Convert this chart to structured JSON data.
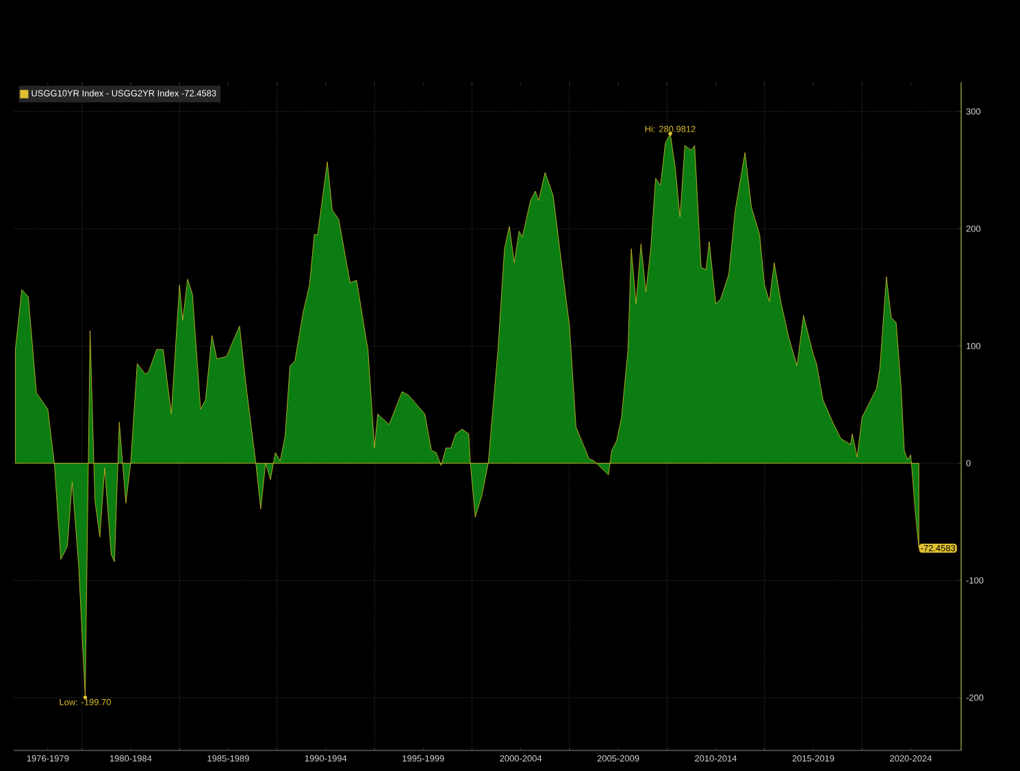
{
  "chart_data": {
    "type": "area",
    "x": [
      "1976-08",
      "1976-12",
      "1977-04",
      "1977-09",
      "1978-04",
      "1978-08",
      "1978-12",
      "1979-04",
      "1979-07",
      "1979-11",
      "1980-03",
      "1980-06",
      "1980-09",
      "1980-12",
      "1981-03",
      "1981-07",
      "1981-09",
      "1981-12",
      "1982-04",
      "1982-07",
      "1982-11",
      "1983-04",
      "1983-06",
      "1983-11",
      "1984-03",
      "1984-08",
      "1985-01",
      "1985-03",
      "1985-06",
      "1985-09",
      "1986-02",
      "1986-05",
      "1986-09",
      "1986-12",
      "1987-06",
      "1987-09",
      "1988-02",
      "1988-06",
      "1988-12",
      "1989-03",
      "1989-06",
      "1989-09",
      "1989-12",
      "1990-03",
      "1990-06",
      "1990-09",
      "1990-12",
      "1991-05",
      "1991-09",
      "1991-12",
      "1992-02",
      "1992-05",
      "1992-08",
      "1992-11",
      "1993-03",
      "1993-10",
      "1994-02",
      "1994-08",
      "1994-09",
      "1995-01",
      "1995-03",
      "1995-10",
      "1996-06",
      "1996-10",
      "1997-08",
      "1997-12",
      "1998-03",
      "1998-06",
      "1998-09",
      "1998-12",
      "1999-03",
      "1999-07",
      "1999-11",
      "1999-12",
      "2000-03",
      "2000-07",
      "2000-11",
      "2001-05",
      "2001-09",
      "2001-12",
      "2002-03",
      "2002-06",
      "2002-08",
      "2003-01",
      "2003-04",
      "2003-06",
      "2003-10",
      "2004-03",
      "2004-07",
      "2005-01",
      "2005-05",
      "2006-01",
      "2006-04",
      "2007-01",
      "2007-03",
      "2007-06",
      "2007-09",
      "2008-01",
      "2008-03",
      "2008-06",
      "2008-09",
      "2008-12",
      "2009-03",
      "2009-06",
      "2009-09",
      "2009-12",
      "2010-03",
      "2010-06",
      "2010-09",
      "2010-12",
      "2011-04",
      "2011-06",
      "2011-10",
      "2012-01",
      "2012-03",
      "2012-07",
      "2012-10",
      "2013-03",
      "2013-07",
      "2014-01",
      "2014-05",
      "2014-10",
      "2015-01",
      "2015-04",
      "2015-07",
      "2015-11",
      "2016-04",
      "2016-09",
      "2017-01",
      "2017-07",
      "2017-09",
      "2018-01",
      "2018-07",
      "2018-12",
      "2019-06",
      "2019-07",
      "2019-10",
      "2020-01",
      "2020-10",
      "2020-12",
      "2021-04",
      "2021-07",
      "2021-10",
      "2022-01",
      "2022-03",
      "2022-05",
      "2022-07",
      "2022-10",
      "2022-12"
    ],
    "series": [
      {
        "name": "USGG10YR Index - USGG2YR Index -72.4583",
        "color": "#0b7d12",
        "values": [
          97,
          148,
          142,
          60,
          46,
          0,
          -82,
          -71,
          -16,
          -88,
          -199.7,
          113,
          -32,
          -63,
          -4,
          -78,
          -84,
          35,
          -34,
          0,
          85,
          76,
          78,
          97,
          97,
          42,
          152,
          122,
          157,
          144,
          46,
          54,
          109,
          89,
          91,
          101,
          117,
          66,
          0,
          -39,
          0,
          -14,
          9,
          2,
          23,
          83,
          87,
          128,
          152,
          195,
          195,
          226,
          257,
          216,
          208,
          154,
          156,
          105,
          97,
          13,
          42,
          33,
          61,
          58,
          42,
          11,
          9,
          -2,
          13,
          13,
          25,
          29,
          25,
          0,
          -46,
          -28,
          0,
          97,
          183,
          202,
          171,
          198,
          193,
          224,
          232,
          224,
          248,
          228,
          183,
          117,
          31,
          4,
          2,
          -10,
          11,
          19,
          39,
          97,
          183,
          136,
          187,
          146,
          183,
          243,
          237,
          273,
          280.9812,
          253,
          210,
          271,
          267,
          271,
          167,
          165,
          189,
          136,
          140,
          161,
          216,
          265,
          218,
          195,
          152,
          138,
          171,
          138,
          107,
          83,
          126,
          93,
          85,
          54,
          35,
          21,
          16,
          25,
          5,
          39,
          64,
          81,
          159,
          124,
          120,
          66,
          11,
          3,
          7,
          -45,
          -72.4583
        ]
      }
    ],
    "xlim": [
      "1976-07",
      "2025-02"
    ],
    "xticks": [
      {
        "value": "1978-04",
        "label": "1976-1979"
      },
      {
        "value": "1982-07",
        "label": "1980-1984"
      },
      {
        "value": "1987-07",
        "label": "1985-1989"
      },
      {
        "value": "1992-07",
        "label": "1990-1994"
      },
      {
        "value": "1997-07",
        "label": "1995-1999"
      },
      {
        "value": "2002-07",
        "label": "2000-2004"
      },
      {
        "value": "2007-07",
        "label": "2005-2009"
      },
      {
        "value": "2012-07",
        "label": "2010-2014"
      },
      {
        "value": "2017-07",
        "label": "2015-2019"
      },
      {
        "value": "2022-07",
        "label": "2020-2024"
      },
      {
        "value": "1980-01",
        "label": null
      },
      {
        "value": "1985-01",
        "label": null
      },
      {
        "value": "1990-01",
        "label": null
      },
      {
        "value": "1995-01",
        "label": null
      },
      {
        "value": "2000-01",
        "label": null
      },
      {
        "value": "2005-01",
        "label": null
      },
      {
        "value": "2010-01",
        "label": null
      },
      {
        "value": "2015-01",
        "label": null
      },
      {
        "value": "2020-01",
        "label": null
      }
    ],
    "ylim": [
      -245,
      325
    ],
    "yticks": [
      -200,
      -100,
      0,
      100,
      200,
      300
    ],
    "grid": true,
    "legend": "top left",
    "annotations": [
      {
        "text": "Hi: 280.9812",
        "x": "2010-03",
        "y": 280.9812
      },
      {
        "text": "Low: -199.70",
        "x": "1980-03",
        "y": -199.7
      },
      {
        "text": "-72.4583",
        "x": "2022-12",
        "y": -72.4583
      }
    ]
  }
}
